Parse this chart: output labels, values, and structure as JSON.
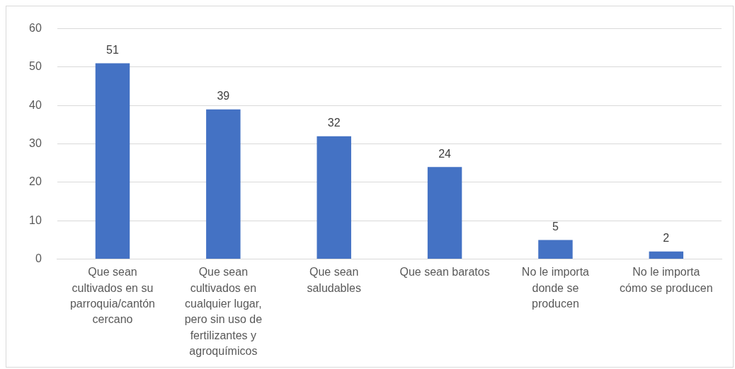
{
  "chart_data": {
    "type": "bar",
    "categories": [
      "Que sean cultivados en su parroquia/cantón cercano",
      "Que sean cultivados en cualquier lugar, pero sin uso de fertilizantes y agroquímicos",
      "Que sean saludables",
      "Que sean baratos",
      "No le importa donde se producen",
      "No le importa cómo se producen"
    ],
    "values": [
      51,
      39,
      32,
      24,
      5,
      2
    ],
    "color": "#4472c4",
    "ylim": [
      0,
      60
    ],
    "yticks": [
      0,
      10,
      20,
      30,
      40,
      50,
      60
    ],
    "grid": "y",
    "data_labels": true
  }
}
